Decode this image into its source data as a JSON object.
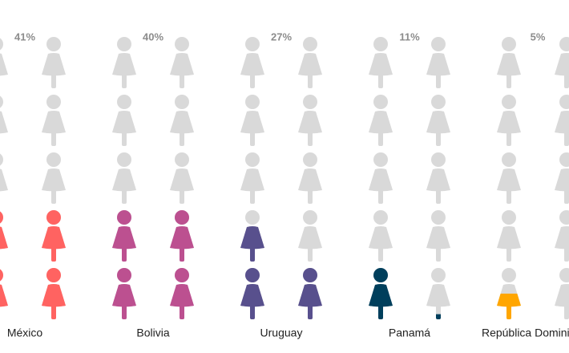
{
  "chart_data": {
    "type": "pictogram",
    "categories": [
      "México",
      "Bolivia",
      "Uruguay",
      "Panamá",
      "República Dominicana"
    ],
    "values": [
      41,
      40,
      27,
      11,
      5
    ],
    "value_labels": [
      "41%",
      "40%",
      "27%",
      "11%",
      "5%"
    ],
    "colors": [
      "#ff6361",
      "#bc5090",
      "#58508d",
      "#003f5c",
      "#ffa600"
    ],
    "empty_color": "#d9d9d9"
  }
}
